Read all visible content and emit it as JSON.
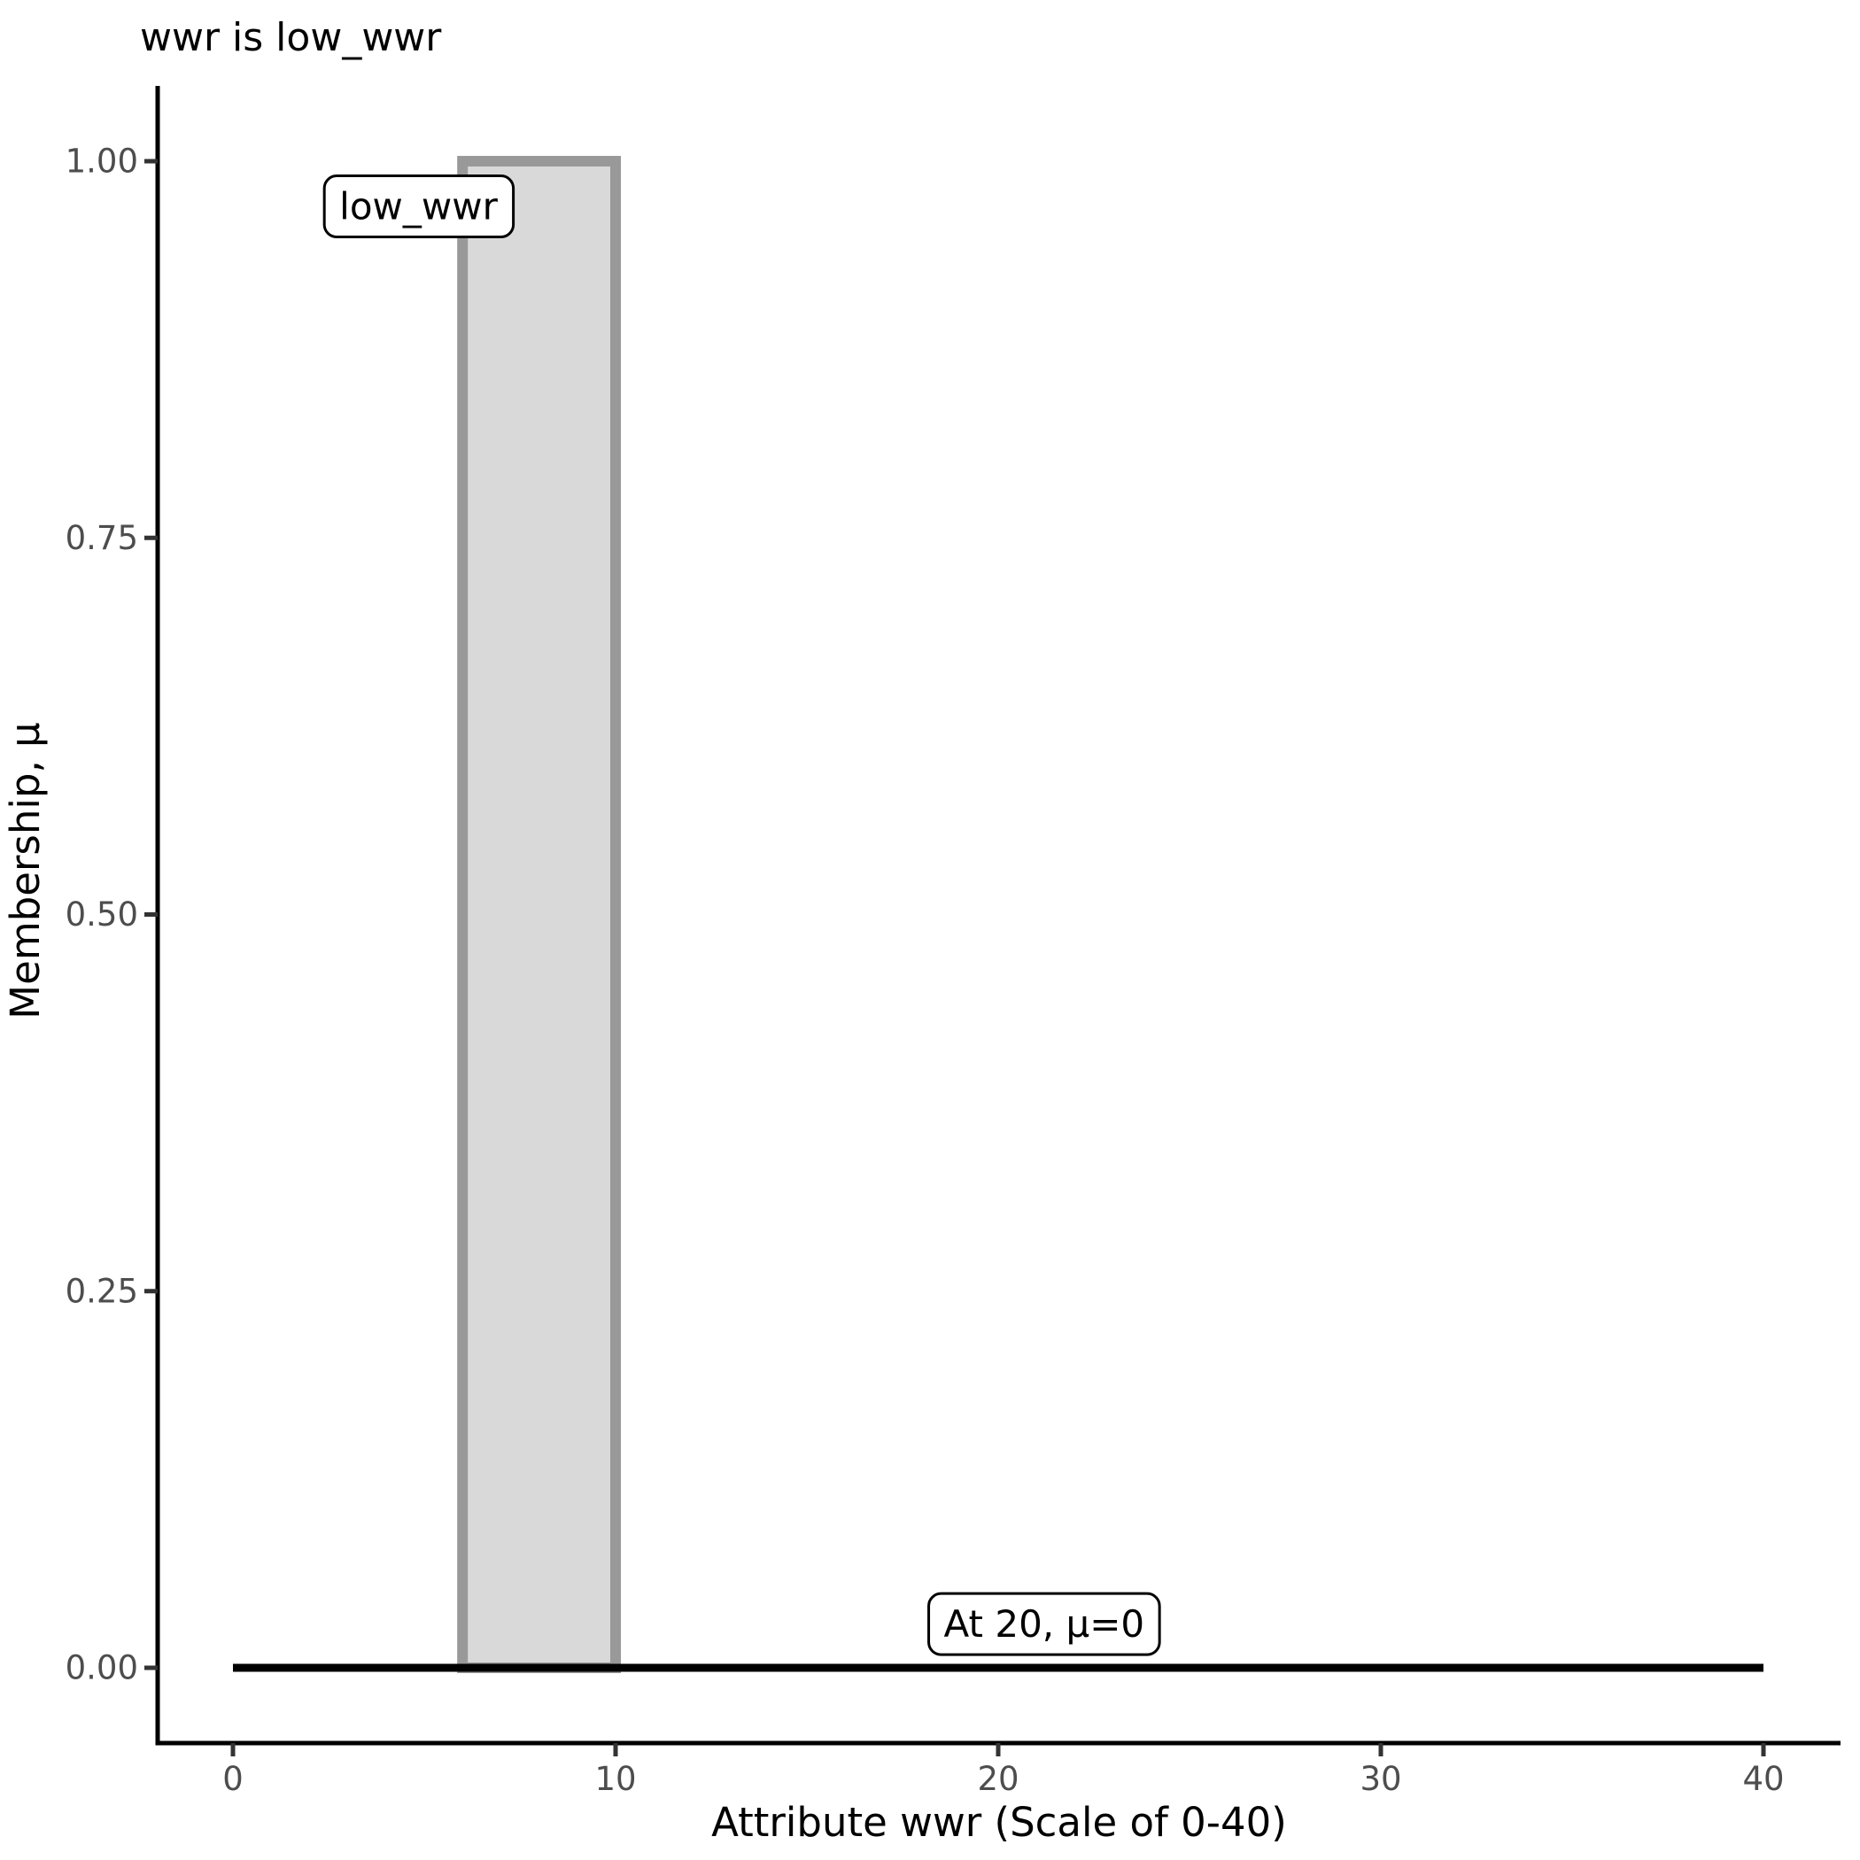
{
  "page": {
    "background": "#ffffff"
  },
  "chart_data": {
    "type": "area",
    "title": "wwr is low_wwr",
    "xlabel": "Attribute wwr (Scale of 0-40)",
    "ylabel": "Membership, μ",
    "xlim": [
      0,
      40
    ],
    "ylim": [
      0,
      1
    ],
    "grid": false,
    "legend": "none",
    "x_tick_values": [
      0,
      10,
      20,
      30,
      40
    ],
    "x_tick_labels": [
      "0",
      "10",
      "20",
      "30",
      "40"
    ],
    "y_tick_values": [
      0,
      0.25,
      0.5,
      0.75,
      1
    ],
    "y_tick_labels": [
      "0.00",
      "0.25",
      "0.50",
      "0.75",
      "1.00"
    ],
    "fuzzy_set": {
      "name": "low_wwr",
      "shape": "rectangle",
      "x_from": 6,
      "x_to": 10,
      "membership_height": 1.0,
      "fill": "#d9d9d9",
      "stroke": "#999999"
    },
    "membership_line": {
      "x_from": 0,
      "x_to": 40,
      "mu": 0,
      "color": "#000000"
    },
    "annotations": [
      {
        "id": "set-label",
        "text": "low_wwr",
        "x": 4.85,
        "y": 0.97
      },
      {
        "id": "eval-label",
        "text": "At 20, μ=0",
        "x": 21.2,
        "y": 0.029
      }
    ],
    "colors": {
      "background": "#ffffff",
      "axis_line": "#000000",
      "tick_mark": "#333333",
      "tick_label": "#4d4d4d",
      "title_text": "#000000",
      "annotation_border": "#000000",
      "annotation_fill": "#ffffff"
    }
  }
}
